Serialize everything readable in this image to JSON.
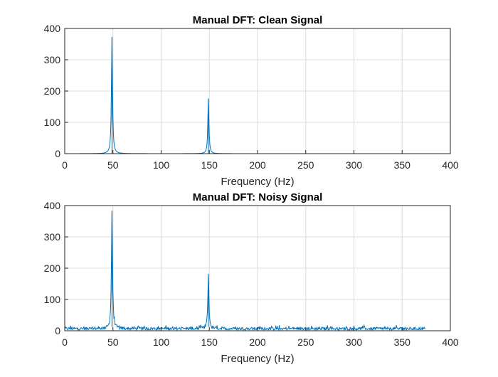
{
  "colors": {
    "series": "#0072BD",
    "grid": "#dcdcdc",
    "axis": "#262626",
    "background": "#ffffff"
  },
  "chart_data": [
    {
      "type": "line",
      "title": "Manual DFT: Clean Signal",
      "xlabel": "Frequency (Hz)",
      "ylabel": "",
      "xlim": [
        0,
        400
      ],
      "ylim": [
        0,
        400
      ],
      "xticks": [
        "0",
        "50",
        "100",
        "150",
        "200",
        "250",
        "300",
        "350",
        "400"
      ],
      "yticks": [
        "0",
        "100",
        "200",
        "300",
        "400"
      ],
      "grid": true,
      "x_range": [
        0,
        374
      ],
      "noise": false,
      "peaks": [
        {
          "x": 49,
          "y": 373
        },
        {
          "x": 149,
          "y": 176
        }
      ]
    },
    {
      "type": "line",
      "title": "Manual DFT: Noisy Signal",
      "xlabel": "Frequency (Hz)",
      "ylabel": "",
      "xlim": [
        0,
        400
      ],
      "ylim": [
        0,
        400
      ],
      "xticks": [
        "0",
        "50",
        "100",
        "150",
        "200",
        "250",
        "300",
        "350",
        "400"
      ],
      "yticks": [
        "0",
        "100",
        "200",
        "300",
        "400"
      ],
      "grid": true,
      "x_range": [
        0,
        374
      ],
      "noise": true,
      "noise_floor": [
        2,
        18
      ],
      "peaks": [
        {
          "x": 49,
          "y": 378
        },
        {
          "x": 149,
          "y": 176
        }
      ]
    }
  ]
}
